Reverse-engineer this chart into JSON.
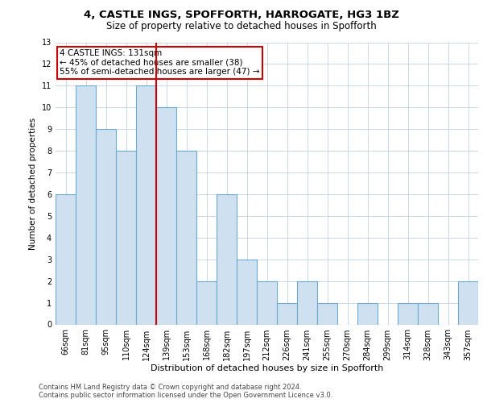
{
  "title1": "4, CASTLE INGS, SPOFFORTH, HARROGATE, HG3 1BZ",
  "title2": "Size of property relative to detached houses in Spofforth",
  "xlabel": "Distribution of detached houses by size in Spofforth",
  "ylabel": "Number of detached properties",
  "categories": [
    "66sqm",
    "81sqm",
    "95sqm",
    "110sqm",
    "124sqm",
    "139sqm",
    "153sqm",
    "168sqm",
    "182sqm",
    "197sqm",
    "212sqm",
    "226sqm",
    "241sqm",
    "255sqm",
    "270sqm",
    "284sqm",
    "299sqm",
    "314sqm",
    "328sqm",
    "343sqm",
    "357sqm"
  ],
  "values": [
    6,
    11,
    9,
    8,
    11,
    10,
    8,
    2,
    6,
    3,
    2,
    1,
    2,
    1,
    0,
    1,
    0,
    1,
    1,
    0,
    2
  ],
  "bar_color": "#cfe0f0",
  "bar_edge_color": "#6aabd2",
  "vline_x": 4.5,
  "vline_color": "#cc0000",
  "annotation_text": "4 CASTLE INGS: 131sqm\n← 45% of detached houses are smaller (38)\n55% of semi-detached houses are larger (47) →",
  "annotation_box_color": "#cc0000",
  "ylim": [
    0,
    13
  ],
  "yticks": [
    0,
    1,
    2,
    3,
    4,
    5,
    6,
    7,
    8,
    9,
    10,
    11,
    12,
    13
  ],
  "footer": "Contains HM Land Registry data © Crown copyright and database right 2024.\nContains public sector information licensed under the Open Government Licence v3.0.",
  "bg_color": "#ffffff",
  "grid_color": "#c8d8e8",
  "title1_fontsize": 9.5,
  "title2_fontsize": 8.5,
  "footer_fontsize": 6.0,
  "ylabel_fontsize": 7.5,
  "xlabel_fontsize": 8.0,
  "tick_fontsize": 7.0,
  "annot_fontsize": 7.5
}
